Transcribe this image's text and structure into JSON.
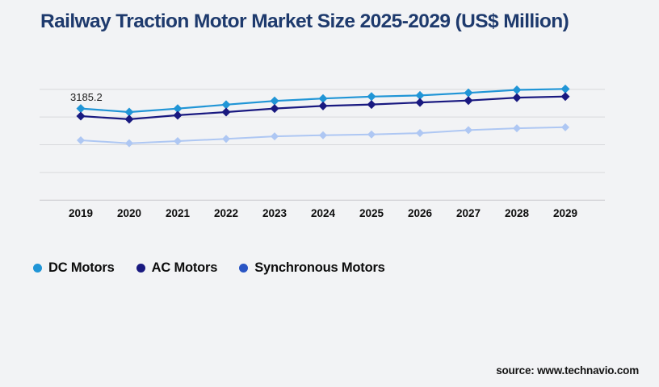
{
  "page": {
    "background": "#f2f3f5",
    "title": "Railway Traction Motor Market Size 2025-2029 (US$ Million)",
    "title_color": "#1e3a6d",
    "source": "source: www.technavio.com"
  },
  "chart_data": {
    "type": "line",
    "title": "Railway Traction Motor Market Size 2025-2029 (US$ Million)",
    "categories": [
      "2019",
      "2020",
      "2021",
      "2022",
      "2023",
      "2024",
      "2025",
      "2026",
      "2027",
      "2028",
      "2029"
    ],
    "series": [
      {
        "name": "DC Motors",
        "legend_color": "#2095d6",
        "line_color": "#2095d6",
        "values": [
          3185.2,
          3108,
          3183,
          3268,
          3349,
          3401,
          3443,
          3468,
          3524,
          3587,
          3608
        ]
      },
      {
        "name": "AC Motors",
        "legend_color": "#191980",
        "line_color": "#191980",
        "values": [
          3021,
          2952,
          3039,
          3108,
          3184,
          3240,
          3271,
          3316,
          3357,
          3420,
          3444
        ]
      },
      {
        "name": "Synchronous Motors",
        "legend_color": "#2a55c4",
        "line_color": "#aec7f3",
        "values": [
          2497,
          2433,
          2480,
          2527,
          2583,
          2606,
          2623,
          2653,
          2717,
          2757,
          2779
        ]
      }
    ],
    "annotation": {
      "text": "3185.2",
      "series_index": 0,
      "point_index": 0
    },
    "xlabel": "",
    "ylabel": "",
    "ylim": [
      1200,
      3860
    ],
    "gridline_values": [
      1200,
      1800,
      2400,
      3000,
      3600
    ],
    "grid": "horizontal-only",
    "y_axis_labels_visible": false,
    "marker": "diamond",
    "legend_position": "bottom-left",
    "colors": {
      "gridline": "#d8d9dc",
      "axis_line": "#c7c8cc",
      "x_tick_label": "#0d0d0d",
      "annotation_text": "#1c1c1c"
    }
  }
}
